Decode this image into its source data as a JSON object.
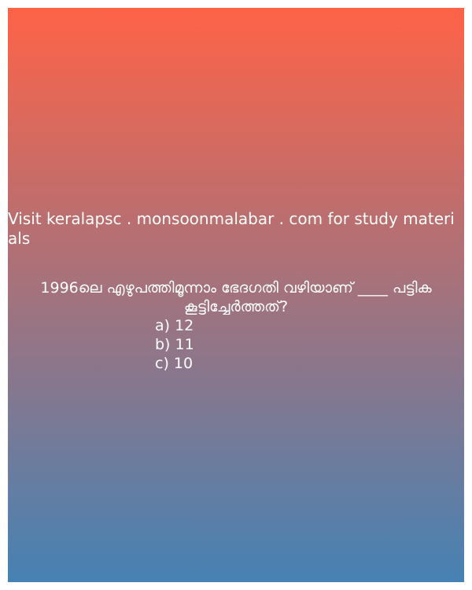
{
  "colors": {
    "gradient_top": "#ff6347",
    "gradient_bottom": "#4682b4",
    "text": "#ffffff"
  },
  "promo_text": "Visit keralapsc . monsoonmalabar . com for study materials",
  "question": {
    "text": "1996ലെ എഴുപത്തിമൂന്നാം ഭേദഗതി വഴിയാണ് ____ പട്ടിക കൂട്ടിച്ചേർത്തത്?",
    "options": [
      {
        "label": "a) 12"
      },
      {
        "label": "b) 11"
      },
      {
        "label": "c) 10"
      }
    ]
  }
}
